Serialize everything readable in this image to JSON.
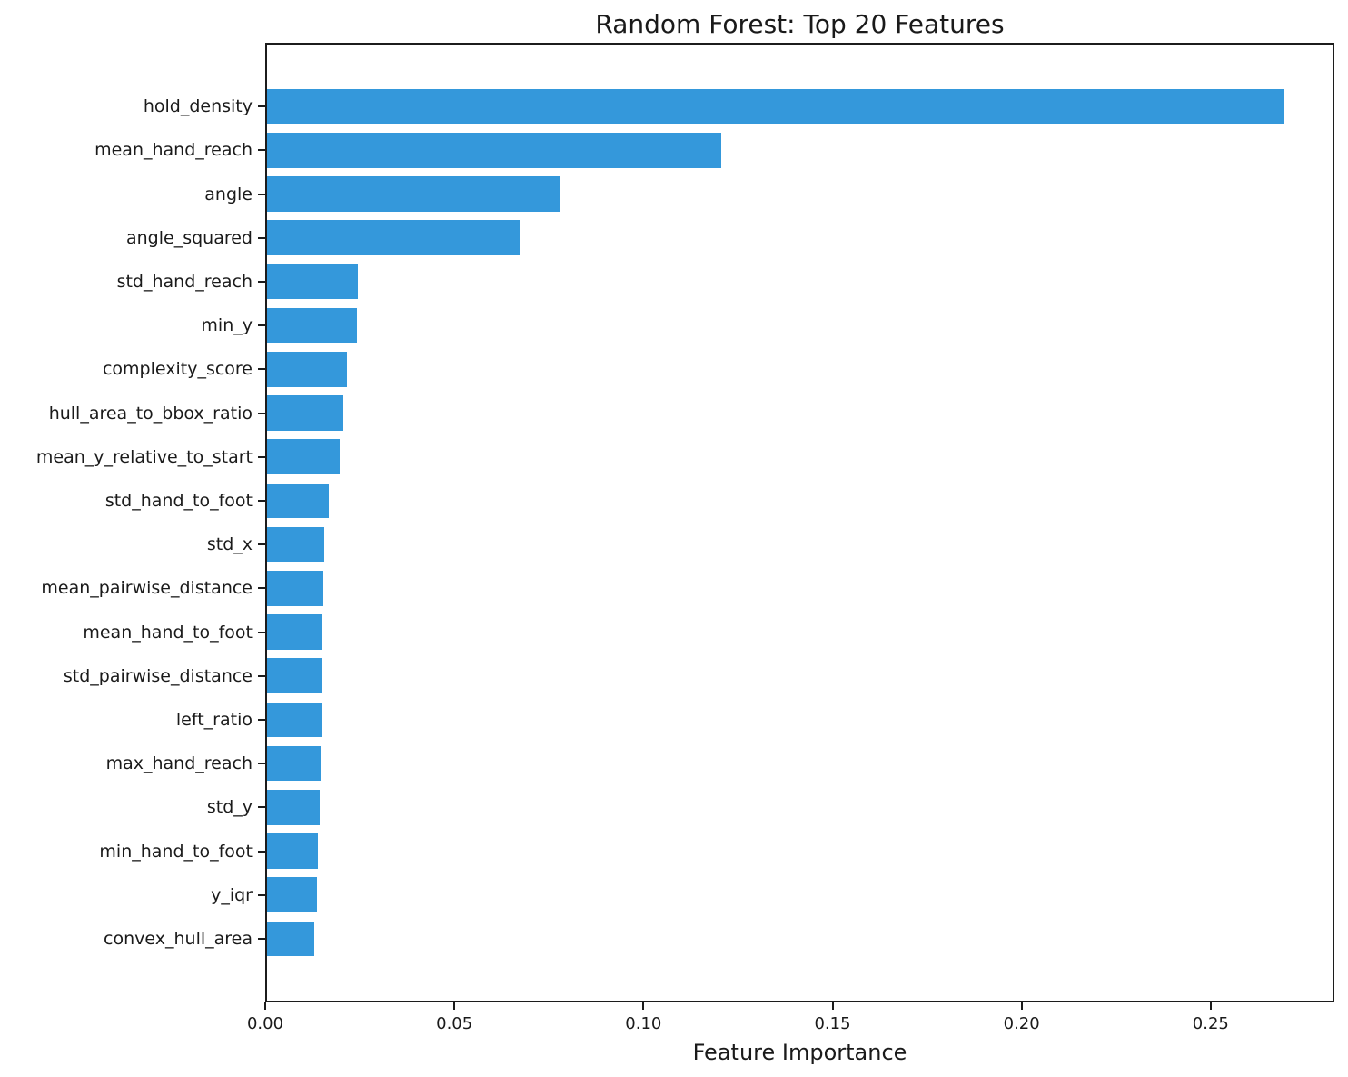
{
  "chart_data": {
    "type": "bar",
    "orientation": "horizontal",
    "title": "Random Forest: Top 20 Features",
    "xlabel": "Feature Importance",
    "ylabel": "",
    "bar_color": "#3498db",
    "grid": false,
    "legend_position": "none",
    "xlim": [
      0,
      0.2827
    ],
    "x_ticks": [
      {
        "value": 0.0,
        "label": "0.00"
      },
      {
        "value": 0.05,
        "label": "0.05"
      },
      {
        "value": 0.1,
        "label": "0.10"
      },
      {
        "value": 0.15,
        "label": "0.15"
      },
      {
        "value": 0.2,
        "label": "0.20"
      },
      {
        "value": 0.25,
        "label": "0.25"
      }
    ],
    "categories": [
      "hold_density",
      "mean_hand_reach",
      "angle",
      "angle_squared",
      "std_hand_reach",
      "min_y",
      "complexity_score",
      "hull_area_to_bbox_ratio",
      "mean_y_relative_to_start",
      "std_hand_to_foot",
      "std_x",
      "mean_pairwise_distance",
      "mean_hand_to_foot",
      "std_pairwise_distance",
      "left_ratio",
      "max_hand_reach",
      "std_y",
      "min_hand_to_foot",
      "y_iqr",
      "convex_hull_area"
    ],
    "values": [
      0.269,
      0.12,
      0.0776,
      0.0668,
      0.0241,
      0.0237,
      0.0211,
      0.0201,
      0.0192,
      0.0163,
      0.0152,
      0.0149,
      0.0147,
      0.0145,
      0.0143,
      0.0142,
      0.014,
      0.0134,
      0.0132,
      0.0125
    ]
  }
}
